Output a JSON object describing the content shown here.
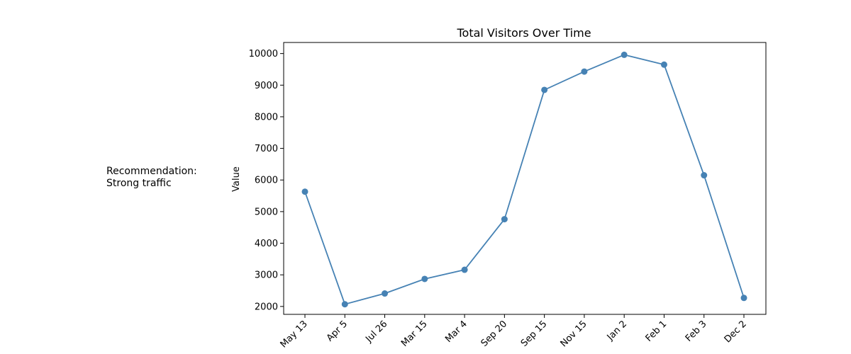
{
  "sidebar": {
    "line1": "Recommendation:",
    "line2": "Strong traffic"
  },
  "chart_data": {
    "type": "line",
    "title": "Total Visitors Over Time",
    "xlabel": "",
    "ylabel": "Value",
    "categories": [
      "May 13",
      "Apr 5",
      "Jul 26",
      "Mar 15",
      "Mar 4",
      "Sep 20",
      "Sep 15",
      "Nov 15",
      "Jan 2",
      "Feb 1",
      "Feb 3",
      "Dec 2"
    ],
    "series": [
      {
        "values": [
          5630,
          2070,
          2410,
          2870,
          3160,
          4760,
          8850,
          9430,
          9960,
          9650,
          6150,
          2270
        ]
      }
    ],
    "ylim": [
      1750,
      10350
    ],
    "yticks": [
      2000,
      3000,
      4000,
      5000,
      6000,
      7000,
      8000,
      9000,
      10000
    ],
    "grid": false,
    "color": "#4682b4"
  }
}
